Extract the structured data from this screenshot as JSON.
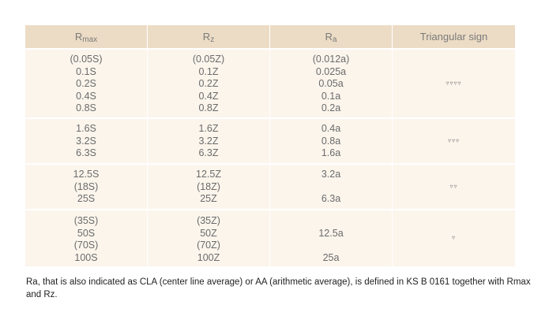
{
  "table": {
    "headers": {
      "rmax_base": "R",
      "rmax_sub": "max",
      "rz_base": "R",
      "rz_sub": "z",
      "ra_base": "R",
      "ra_sub": "a",
      "triangular": "Triangular sign"
    },
    "rows": [
      {
        "rmax": [
          "(0.05S)",
          "0.1S",
          "0.2S",
          "0.4S",
          "0.8S"
        ],
        "rz": [
          "(0.05Z)",
          "0.1Z",
          "0.2Z",
          "0.4Z",
          "0.8Z"
        ],
        "ra": [
          "(0.012a)",
          "0.025a",
          "0.05a",
          "0.1a",
          "0.2a"
        ],
        "sign": "▿▿▿▿"
      },
      {
        "rmax": [
          "1.6S",
          "3.2S",
          "6.3S"
        ],
        "rz": [
          "1.6Z",
          "3.2Z",
          "6.3Z"
        ],
        "ra": [
          "0.4a",
          "0.8a",
          "1.6a"
        ],
        "sign": "▿▿▿"
      },
      {
        "rmax": [
          "12.5S",
          "(18S)",
          "25S"
        ],
        "rz": [
          "12.5Z",
          "(18Z)",
          "25Z"
        ],
        "ra": [
          "3.2a",
          "",
          "6.3a"
        ],
        "sign": "▿▿"
      },
      {
        "rmax": [
          "(35S)",
          "50S",
          "(70S)",
          "100S"
        ],
        "rz": [
          "(35Z)",
          "50Z",
          "(70Z)",
          "100Z"
        ],
        "ra": [
          "",
          "12.5a",
          "",
          "25a"
        ],
        "sign": "▿"
      }
    ]
  },
  "note": "Ra, that is also indicated as CLA (center line average) or AA (arithmetic average), is defined in KS B 0161 together with Rmax and Rz."
}
